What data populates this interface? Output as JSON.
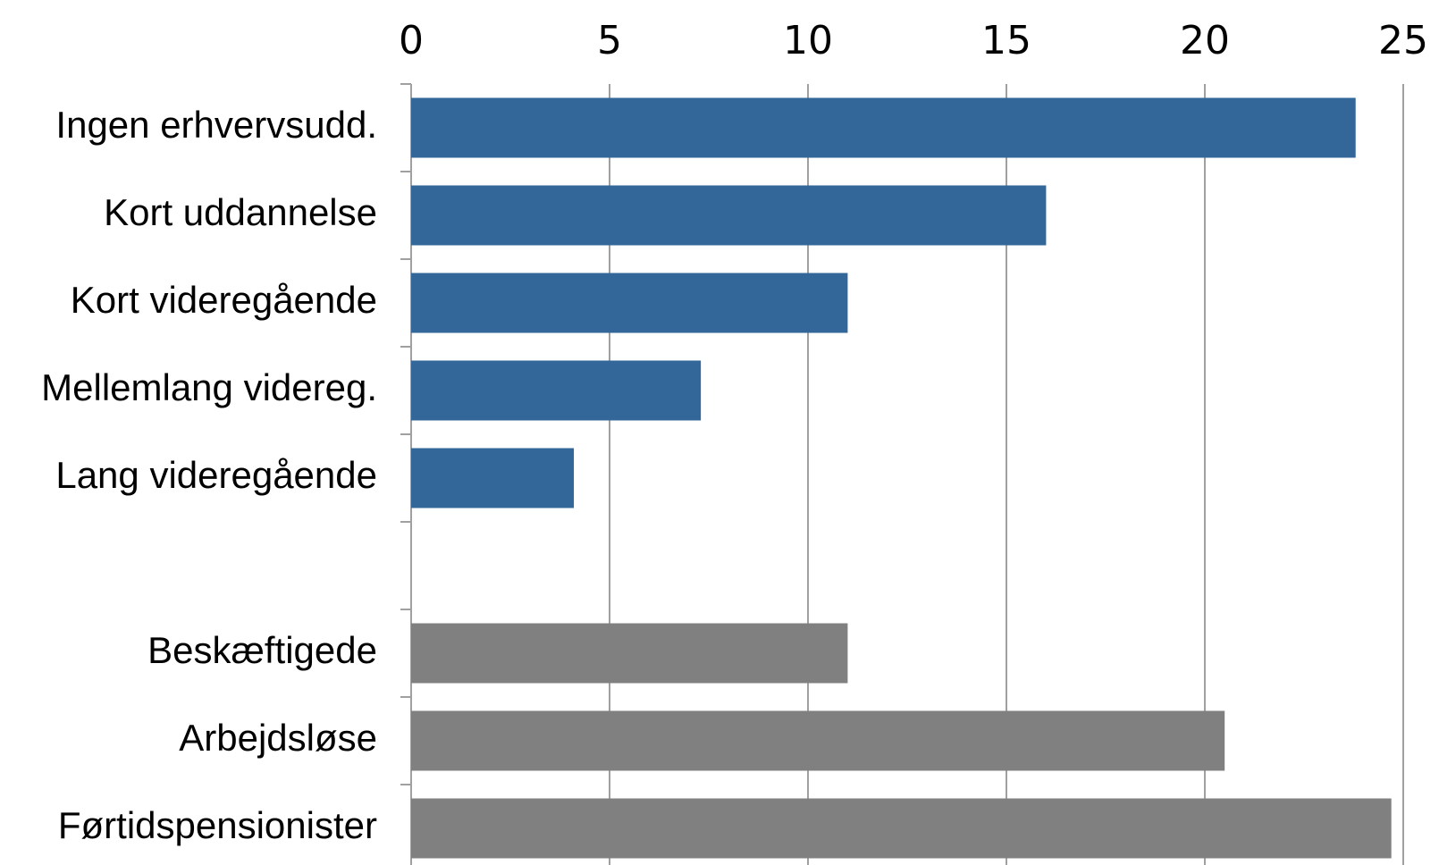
{
  "chart_data": {
    "type": "bar",
    "orientation": "horizontal",
    "title": "",
    "xlabel": "",
    "ylabel": "",
    "xlim": [
      0,
      25
    ],
    "x_ticks": [
      "0",
      "5",
      "10",
      "15",
      "20",
      "25"
    ],
    "x_tick_values": [
      0,
      5,
      10,
      15,
      20,
      25
    ],
    "x_axis_position": "top",
    "grid": "vertical",
    "legend": "none",
    "categories": [
      "Ingen erhvervsudd.",
      "Kort uddannelse",
      "Kort videregående",
      "Mellemlang videreg.",
      "Lang videregående",
      "",
      "Beskæftigede",
      "Arbejdsløse",
      "Førtidspensionister"
    ],
    "values": [
      23.8,
      16.0,
      11.0,
      7.3,
      4.1,
      null,
      11.0,
      20.5,
      24.7
    ],
    "bar_colors": [
      "#336699",
      "#336699",
      "#336699",
      "#336699",
      "#336699",
      null,
      "#808080",
      "#808080",
      "#808080"
    ],
    "colors": {
      "blue": "#336699",
      "gray": "#808080",
      "gridline": "#a0a0a0"
    }
  }
}
